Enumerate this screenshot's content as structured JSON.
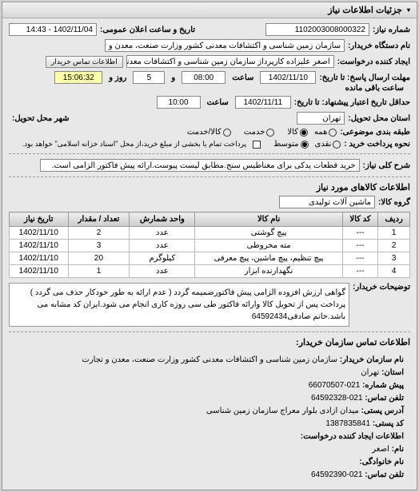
{
  "panel_title": "جزئیات اطلاعات نیاز",
  "header": {
    "need_no_label": "شماره نیاز:",
    "need_no": "1102003008000322",
    "announce_label": "تاریخ و ساعت اعلان عمومی:",
    "announce_value": "1402/11/04 - 14:43",
    "buyer_label": "نام دستگاه خریدار:",
    "buyer_value": "سازمان زمین شناسی و اکتشافات معدنی کشور وزارت صنعت، معدن و تجارت",
    "requester_label": "ایجاد کننده درخواست:",
    "requester_value": "اصغر علیزاده کارپرداز سازمان زمین شناسی و اکتشافات معدنی کشور وزارت ص",
    "contact_btn": "اطلاعات تماس خریدار",
    "deadline_send_label": "مهلت ارسال پاسخ: تا تاریخ:",
    "deadline_expire_label": "حداقل تاریخ اعتبار پیشنهاد: تا تاریخ:",
    "date1": "1402/11/10",
    "time1_label": "ساعت",
    "time1": "08:00",
    "and_label": "و",
    "days_remain": "5",
    "days_label": "روز و",
    "countdown": "15:06:32",
    "remain_label": "ساعت باقی مانده",
    "date2": "1402/11/11",
    "time2": "10:00",
    "delivery_province_label": "استان محل تحویل:",
    "delivery_province": "تهران",
    "delivery_city_label": "شهر محل تحویل:",
    "pkg_label": "طبقه بندی موضوعی:",
    "opt_all": "همه",
    "opt_goods": "کالا",
    "opt_service": "خدمت",
    "opt_goods_service": "کالا/خدمت",
    "pay_label": "نحوه پرداخت خرید :",
    "opt_cash": "نقدی",
    "opt_medium": "متوسط",
    "pay_note": "پرداخت تمام یا بخشی از مبلغ خرید،از محل \"اسناد خزانه اسلامی\" خواهد بود.",
    "need_title_label": "شرح کلی نیاز:",
    "need_title": "خرید قطعات یدکی برای مغناطیس سنج.مطابق لیست پیوست.ارائه پیش فاکتور الزامی است."
  },
  "goods_section": {
    "title": "اطلاعات کالاهای مورد نیاز",
    "group_label": "گروه کالا:",
    "group_value": "ماشین آلات تولیدی",
    "columns": {
      "row": "ردیف",
      "code": "کد کالا",
      "name": "نام کالا",
      "unit": "واحد شمارش",
      "qty": "تعداد / مقدار",
      "date": "تاریخ نیاز"
    },
    "rows": [
      {
        "row": "1",
        "code": "---",
        "name": "پیچ گوشتی",
        "unit": "عدد",
        "qty": "2",
        "date": "1402/11/10"
      },
      {
        "row": "2",
        "code": "---",
        "name": "مته مخروطی",
        "unit": "عدد",
        "qty": "3",
        "date": "1402/11/10"
      },
      {
        "row": "3",
        "code": "---",
        "name": "پیچ تنظیم، پیچ ماشین، پیچ معرفی",
        "unit": "کیلوگرم",
        "qty": "20",
        "date": "1402/11/10"
      },
      {
        "row": "4",
        "code": "---",
        "name": "نگهدارنده ابزار",
        "unit": "عدد",
        "qty": "1",
        "date": "1402/11/10"
      }
    ],
    "desc_label": "توضیحات خریدار:",
    "desc_text": "گواهی ارزش افزوده الزامی پیش فاکتورضمیمه گردد ( عدم ارائه به طور خودکار حذف می گردد ) پرداخت پس از تحویل کالا وارائه فاکتور طی سی روزه کاری انجام می شود.ایران کد مشابه می باشد.خانم صادقی64592434"
  },
  "contact_section": {
    "title": "اطلاعات تماس سازمان خریدار:",
    "org_label": "نام سازمان خریدار:",
    "org_value": "سازمان زمین شناسی و اکتشافات معدنی کشور وزارت صنعت، معدن و تجارت",
    "province_label": "استان:",
    "province": "تهران",
    "pre_phone_label": "پیش شماره:",
    "pre_phone": "021-66070507",
    "phone_label": "تلفن تماس:",
    "phone": "021-64592328",
    "address_label": "آدرس پستی:",
    "address": "میدان ازادی بلوار معراج سازمان زمین شناسی",
    "postal_label": "کد پستی:",
    "postal": "1387835841",
    "creator_section_label": "اطلاعات ایجاد کننده درخواست:",
    "name_label": "نام:",
    "name": "اصغر",
    "family_label": "نام خانوادگی:",
    "contact_phone_label": "تلفن تماس:",
    "contact_phone": "021-64592390"
  }
}
